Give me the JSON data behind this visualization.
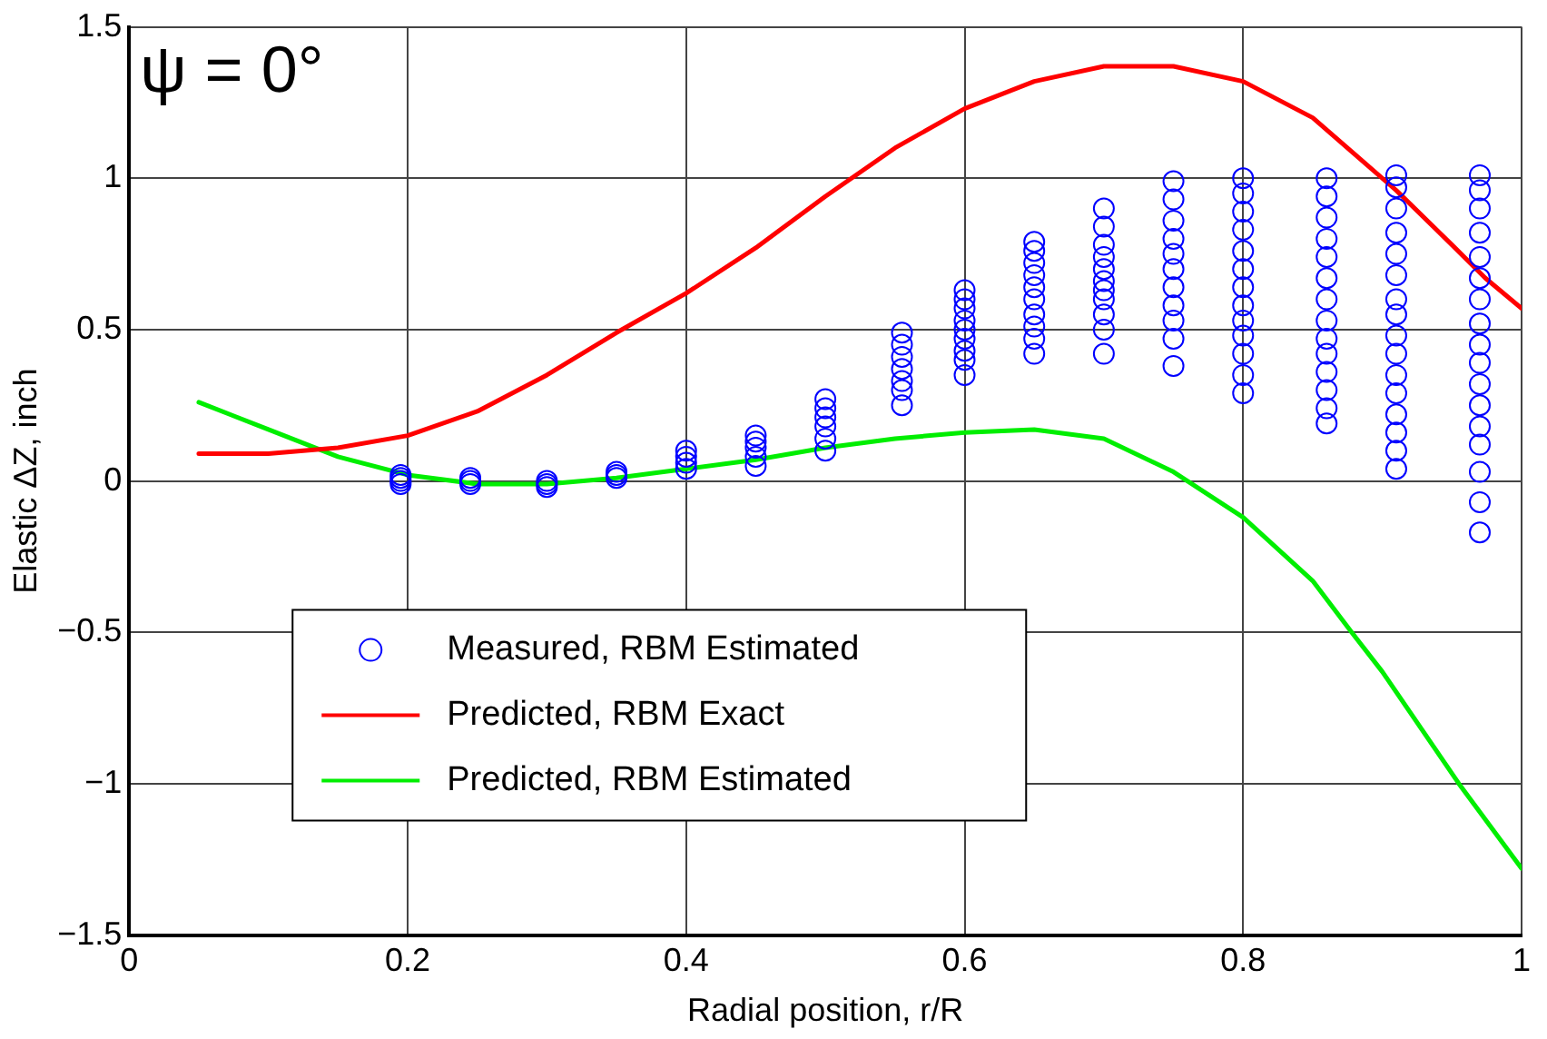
{
  "chart_data": {
    "type": "scatter",
    "xlabel": "Radial position, r/R",
    "ylabel": "Elastic ΔZ, inch",
    "annotations": [
      "ψ = 0°"
    ],
    "xlim": [
      0,
      1
    ],
    "xticks": [
      0,
      0.2,
      0.4,
      0.6,
      0.8,
      1
    ],
    "ylim": [
      -1.5,
      1.5
    ],
    "yticks": [
      {
        "value": -1.5,
        "label": "−1.5"
      },
      {
        "value": -1,
        "label": "−1"
      },
      {
        "value": -0.5,
        "label": "−0.5"
      },
      0,
      0.5,
      1,
      1.5
    ],
    "grid": true,
    "legend": "bottom left",
    "series": [
      {
        "name": "Measured, RBM Estimated",
        "type": "scatter",
        "marker": "circle",
        "color": "#0000ff",
        "x": [
          0.195,
          0.195,
          0.195,
          0.195,
          0.245,
          0.245,
          0.245,
          0.3,
          0.3,
          0.3,
          0.35,
          0.35,
          0.35,
          0.4,
          0.4,
          0.4,
          0.4,
          0.45,
          0.45,
          0.45,
          0.45,
          0.45,
          0.5,
          0.5,
          0.5,
          0.5,
          0.5,
          0.5,
          0.555,
          0.555,
          0.555,
          0.555,
          0.555,
          0.555,
          0.555,
          0.6,
          0.6,
          0.6,
          0.6,
          0.6,
          0.6,
          0.6,
          0.6,
          0.6,
          0.65,
          0.65,
          0.65,
          0.65,
          0.65,
          0.65,
          0.65,
          0.65,
          0.65,
          0.65,
          0.7,
          0.7,
          0.7,
          0.7,
          0.7,
          0.7,
          0.7,
          0.7,
          0.7,
          0.7,
          0.7,
          0.75,
          0.75,
          0.75,
          0.75,
          0.75,
          0.75,
          0.75,
          0.75,
          0.75,
          0.75,
          0.75,
          0.8,
          0.8,
          0.8,
          0.8,
          0.8,
          0.8,
          0.8,
          0.8,
          0.8,
          0.8,
          0.8,
          0.8,
          0.8,
          0.86,
          0.86,
          0.86,
          0.86,
          0.86,
          0.86,
          0.86,
          0.86,
          0.86,
          0.86,
          0.86,
          0.86,
          0.86,
          0.86,
          0.91,
          0.91,
          0.91,
          0.91,
          0.91,
          0.91,
          0.91,
          0.91,
          0.91,
          0.91,
          0.91,
          0.91,
          0.91,
          0.91,
          0.91,
          0.91,
          0.97,
          0.97,
          0.97,
          0.97,
          0.97,
          0.97,
          0.97,
          0.97,
          0.97,
          0.97,
          0.97,
          0.97,
          0.97,
          0.97,
          0.97,
          0.97,
          0.97
        ],
        "values": [
          0,
          0.01,
          0.02,
          -0.01,
          0,
          0.01,
          -0.01,
          -0.01,
          0,
          -0.02,
          0.01,
          0.02,
          0.03,
          0.04,
          0.06,
          0.08,
          0.1,
          0.05,
          0.08,
          0.11,
          0.13,
          0.15,
          0.1,
          0.14,
          0.18,
          0.21,
          0.24,
          0.27,
          0.25,
          0.3,
          0.33,
          0.37,
          0.41,
          0.45,
          0.49,
          0.35,
          0.4,
          0.43,
          0.47,
          0.5,
          0.53,
          0.57,
          0.6,
          0.63,
          0.42,
          0.47,
          0.51,
          0.55,
          0.6,
          0.64,
          0.68,
          0.72,
          0.76,
          0.79,
          0.42,
          0.5,
          0.55,
          0.6,
          0.63,
          0.66,
          0.7,
          0.74,
          0.78,
          0.84,
          0.9,
          0.38,
          0.47,
          0.53,
          0.58,
          0.64,
          0.7,
          0.75,
          0.8,
          0.86,
          0.93,
          0.99,
          0.29,
          0.35,
          0.42,
          0.48,
          0.53,
          0.58,
          0.64,
          0.7,
          0.76,
          0.83,
          0.89,
          0.95,
          1,
          0.19,
          0.24,
          0.3,
          0.36,
          0.42,
          0.47,
          0.53,
          0.6,
          0.67,
          0.74,
          0.8,
          0.87,
          0.94,
          1,
          0.04,
          0.1,
          0.16,
          0.22,
          0.29,
          0.35,
          0.42,
          0.48,
          0.55,
          0.6,
          0.68,
          0.75,
          0.82,
          0.9,
          0.97,
          1.01,
          -0.17,
          -0.07,
          0.03,
          0.12,
          0.18,
          0.25,
          0.32,
          0.39,
          0.45,
          0.52,
          0.6,
          0.67,
          0.74,
          0.82,
          0.9,
          0.96,
          1.01
        ]
      },
      {
        "name": "Predicted, RBM Exact",
        "type": "line",
        "marker": "none",
        "line_style": "solid",
        "color": "#ff0000",
        "x": [
          0.05,
          0.1,
          0.15,
          0.2,
          0.25,
          0.3,
          0.35,
          0.4,
          0.45,
          0.5,
          0.55,
          0.6,
          0.65,
          0.7,
          0.75,
          0.8,
          0.85,
          0.88,
          0.91,
          0.95,
          0.974,
          1
        ],
        "values": [
          0.09,
          0.09,
          0.11,
          0.15,
          0.23,
          0.35,
          0.49,
          0.62,
          0.77,
          0.94,
          1.1,
          1.23,
          1.32,
          1.37,
          1.37,
          1.32,
          1.2,
          1.08,
          0.96,
          0.78,
          0.67,
          0.57
        ]
      },
      {
        "name": "Predicted, RBM Estimated",
        "type": "line",
        "marker": "none",
        "line_style": "solid",
        "color": "#00ee00",
        "x": [
          0.05,
          0.1,
          0.15,
          0.2,
          0.25,
          0.3,
          0.35,
          0.4,
          0.45,
          0.5,
          0.55,
          0.6,
          0.65,
          0.7,
          0.75,
          0.8,
          0.85,
          0.878,
          0.9,
          0.955,
          1
        ],
        "values": [
          0.26,
          0.17,
          0.08,
          0.02,
          -0.01,
          -0.01,
          0.01,
          0.04,
          0.07,
          0.11,
          0.14,
          0.16,
          0.17,
          0.14,
          0.03,
          -0.12,
          -0.33,
          -0.5,
          -0.63,
          -1,
          -1.28
        ]
      }
    ]
  }
}
